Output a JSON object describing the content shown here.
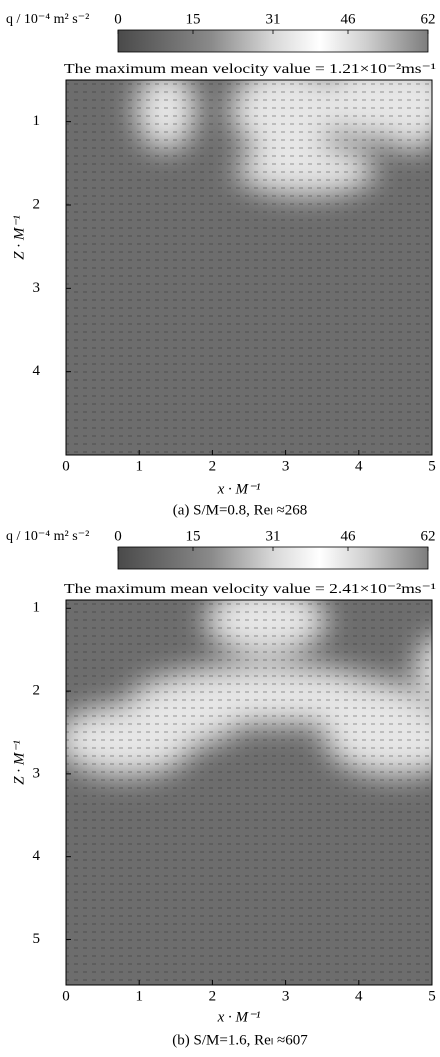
{
  "chart_data": [
    {
      "type": "vector-field",
      "colorbar": {
        "label": "q / 10⁻⁴ m² s⁻²",
        "lim": [
          0,
          62
        ],
        "ticks": [
          0,
          15,
          31,
          46,
          62
        ]
      },
      "annotation": "The maximum mean velocity value = 1.21×10⁻²ms⁻¹",
      "xlabel": "x · M⁻¹",
      "ylabel": "Z · M⁻¹",
      "xlim": [
        0,
        5
      ],
      "xticks": [
        0,
        1,
        2,
        3,
        4,
        5
      ],
      "ylim": [
        0.5,
        5
      ],
      "yticks": [
        1,
        2,
        3,
        4
      ],
      "y_axis_inverted": true,
      "caption": "(a)  S/M=0.8,  Reₗ ≈268"
    },
    {
      "type": "vector-field",
      "colorbar": {
        "label": "q / 10⁻⁴ m² s⁻²",
        "lim": [
          0,
          62
        ],
        "ticks": [
          0,
          15,
          31,
          46,
          62
        ]
      },
      "annotation": "The maximum mean velocity value = 2.41×10⁻²ms⁻¹",
      "xlabel": "x · M⁻¹",
      "ylabel": "Z · M⁻¹",
      "xlim": [
        0,
        5
      ],
      "xticks": [
        0,
        1,
        2,
        3,
        4,
        5
      ],
      "ylim": [
        0.9,
        5.55
      ],
      "yticks": [
        1,
        2,
        3,
        4,
        5
      ],
      "y_axis_inverted": true,
      "caption": "(b)  S/M=1.6,  Reₗ ≈607"
    }
  ]
}
